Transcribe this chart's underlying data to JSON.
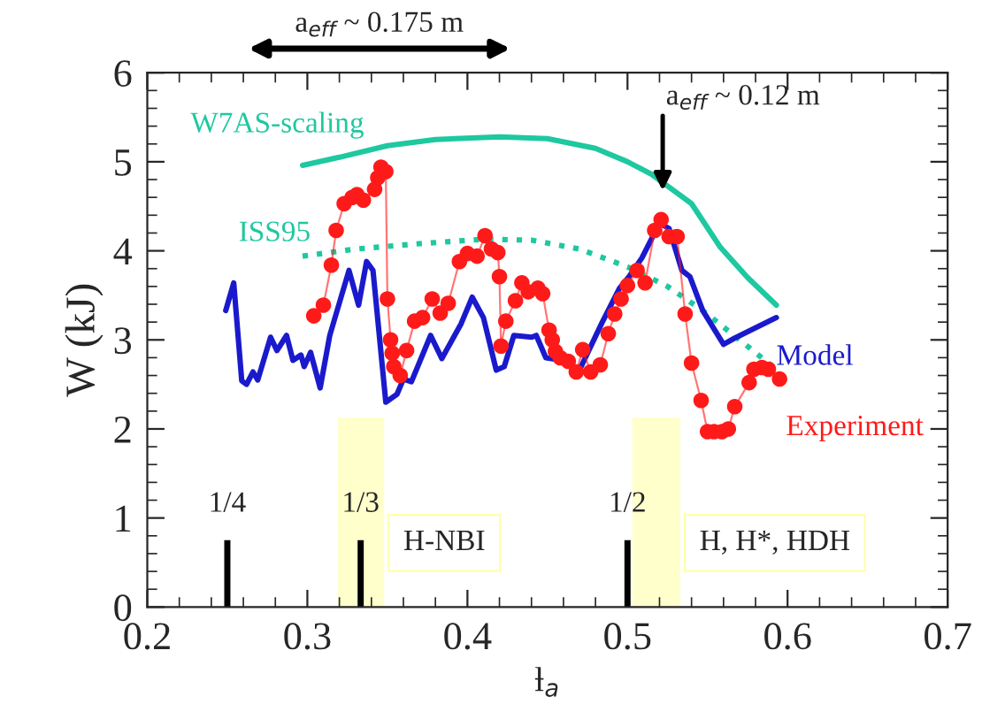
{
  "chart_data": {
    "type": "line",
    "xlabel": "ƚ$_{a}$",
    "ylabel": "W (kJ)",
    "xlim": [
      0.2,
      0.7
    ],
    "ylim": [
      0,
      6
    ],
    "xticks": [
      0.2,
      0.3,
      0.4,
      0.5,
      0.6,
      0.7
    ],
    "yticks": [
      0,
      1,
      2,
      3,
      4,
      5,
      6
    ],
    "grid": false,
    "legend": false,
    "series": [
      {
        "name": "W7AS-scaling",
        "color": "#1ec8a0",
        "line_style": "solid",
        "x": [
          0.297,
          0.32,
          0.35,
          0.38,
          0.42,
          0.45,
          0.48,
          0.5,
          0.515,
          0.54,
          0.558,
          0.575,
          0.593
        ],
        "values": [
          4.96,
          5.05,
          5.18,
          5.25,
          5.28,
          5.26,
          5.15,
          5.0,
          4.86,
          4.53,
          4.04,
          3.7,
          3.39
        ]
      },
      {
        "name": "ISS95",
        "color": "#1ec8a0",
        "line_style": "dotted",
        "x": [
          0.297,
          0.33,
          0.37,
          0.41,
          0.44,
          0.47,
          0.5,
          0.525,
          0.547,
          0.57,
          0.595
        ],
        "values": [
          3.94,
          4.02,
          4.08,
          4.13,
          4.12,
          4.02,
          3.82,
          3.6,
          3.33,
          3.0,
          2.64
        ]
      },
      {
        "name": "Model",
        "color": "#1a1acc",
        "line_style": "solid",
        "x": [
          0.249,
          0.254,
          0.259,
          0.262,
          0.266,
          0.269,
          0.277,
          0.281,
          0.287,
          0.291,
          0.296,
          0.298,
          0.302,
          0.308,
          0.314,
          0.326,
          0.332,
          0.337,
          0.341,
          0.349,
          0.356,
          0.36,
          0.365,
          0.377,
          0.384,
          0.396,
          0.403,
          0.41,
          0.418,
          0.423,
          0.429,
          0.44,
          0.443,
          0.449,
          0.456,
          0.47,
          0.484,
          0.495,
          0.501,
          0.509,
          0.52,
          0.526,
          0.534,
          0.539,
          0.547,
          0.56,
          0.567,
          0.593
        ],
        "values": [
          3.33,
          3.64,
          2.54,
          2.5,
          2.64,
          2.55,
          3.03,
          2.88,
          3.05,
          2.77,
          2.83,
          2.7,
          2.86,
          2.46,
          3.05,
          3.78,
          3.39,
          3.88,
          3.78,
          2.3,
          2.39,
          2.56,
          2.53,
          3.05,
          2.79,
          3.18,
          3.48,
          3.25,
          2.66,
          2.7,
          3.05,
          3.03,
          3.05,
          2.8,
          2.78,
          2.66,
          3.19,
          3.58,
          3.71,
          3.92,
          4.31,
          4.25,
          3.78,
          3.71,
          3.33,
          2.95,
          3.02,
          3.25
        ]
      },
      {
        "name": "Experiment",
        "color": "#ff1a1a",
        "marker": "circle",
        "line_style": "solid",
        "x": [
          0.304,
          0.31,
          0.315,
          0.318,
          0.323,
          0.328,
          0.331,
          0.335,
          0.342,
          0.344,
          0.346,
          0.349,
          0.35,
          0.352,
          0.353,
          0.354,
          0.358,
          0.362,
          0.367,
          0.372,
          0.378,
          0.383,
          0.388,
          0.395,
          0.4,
          0.406,
          0.411,
          0.415,
          0.419,
          0.42,
          0.421,
          0.424,
          0.43,
          0.434,
          0.438,
          0.444,
          0.447,
          0.451,
          0.453,
          0.455,
          0.458,
          0.463,
          0.468,
          0.472,
          0.477,
          0.483,
          0.488,
          0.492,
          0.496,
          0.5,
          0.506,
          0.511,
          0.517,
          0.521,
          0.526,
          0.531,
          0.536,
          0.54,
          0.546,
          0.55,
          0.554,
          0.559,
          0.563,
          0.567,
          0.576,
          0.579,
          0.584,
          0.588,
          0.595
        ],
        "values": [
          3.27,
          3.39,
          3.84,
          4.23,
          4.53,
          4.6,
          4.63,
          4.57,
          4.69,
          4.82,
          4.94,
          4.89,
          3.46,
          3.0,
          2.85,
          2.7,
          2.6,
          2.88,
          3.21,
          3.25,
          3.46,
          3.3,
          3.41,
          3.88,
          3.97,
          3.94,
          4.17,
          4.02,
          3.98,
          3.71,
          2.93,
          3.21,
          3.44,
          3.64,
          3.54,
          3.58,
          3.52,
          3.11,
          3.0,
          2.87,
          2.8,
          2.76,
          2.64,
          2.89,
          2.64,
          2.72,
          3.07,
          3.29,
          3.46,
          3.61,
          3.78,
          3.64,
          4.23,
          4.35,
          4.16,
          4.16,
          3.29,
          2.74,
          2.32,
          1.97,
          1.97,
          1.97,
          2.0,
          2.25,
          2.52,
          2.67,
          2.69,
          2.67,
          2.56
        ]
      }
    ],
    "ref_lines": [
      {
        "axis": "x",
        "value": 0.25,
        "color": "#000000"
      },
      {
        "axis": "x",
        "value": 0.3333,
        "color": "#000000"
      },
      {
        "axis": "x",
        "value": 0.5,
        "color": "#000000"
      }
    ],
    "bands": [
      {
        "axis": "x",
        "from": 0.319,
        "to": 0.348,
        "label": "H-NBI",
        "color": "#ffffcc"
      },
      {
        "axis": "x",
        "from": 0.503,
        "to": 0.533,
        "label": "H, H*, HDH",
        "color": "#ffffcc"
      }
    ],
    "annotations": [
      "a$_{eff}$ ~ 0.175 m",
      {
        "text": "1/4",
        "x": 0.25,
        "y": 0.75
      },
      {
        "text": "1/3",
        "x": 0.3333,
        "y": 0.75
      },
      {
        "text": "1/2",
        "x": 0.5,
        "y": 0.75
      },
      {
        "text": "a$_{eff}$ ~ 0.12 m",
        "x": 0.522,
        "y": 4.62
      }
    ]
  }
}
